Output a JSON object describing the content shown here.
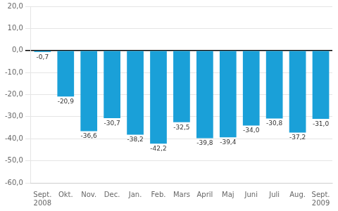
{
  "chart_data": {
    "type": "bar",
    "categories": [
      "Sept.\n2008",
      "Okt.",
      "Nov.",
      "Dec.",
      "Jan.",
      "Feb.",
      "Mars",
      "April",
      "Maj",
      "Juni",
      "Juli",
      "Aug.",
      "Sept.\n2009"
    ],
    "values": [
      -0.7,
      -20.9,
      -36.6,
      -30.7,
      -38.2,
      -42.2,
      -32.5,
      -39.8,
      -39.4,
      -34.0,
      -30.8,
      -37.2,
      -31.0
    ],
    "value_labels": [
      "-0,7",
      "-20,9",
      "-36,6",
      "-30,7",
      "-38,2",
      "-42,2",
      "-32,5",
      "-39,8",
      "-39,4",
      "-34,0",
      "-30,8",
      "-37,2",
      "-31,0"
    ],
    "data_labels": true,
    "color": "#1aa0d8",
    "ylim": [
      -60,
      20
    ],
    "yticks": [
      {
        "value": -60,
        "label": "-60,0"
      },
      {
        "value": -50,
        "label": "-50,0"
      },
      {
        "value": -40,
        "label": "-40,0"
      },
      {
        "value": -30,
        "label": "-30,0"
      },
      {
        "value": -20,
        "label": "-20,0"
      },
      {
        "value": -10,
        "label": "-10,0"
      },
      {
        "value": 0,
        "label": "0,0"
      },
      {
        "value": 10,
        "label": "10,0"
      },
      {
        "value": 20,
        "label": "20,0"
      }
    ],
    "grid": true
  }
}
